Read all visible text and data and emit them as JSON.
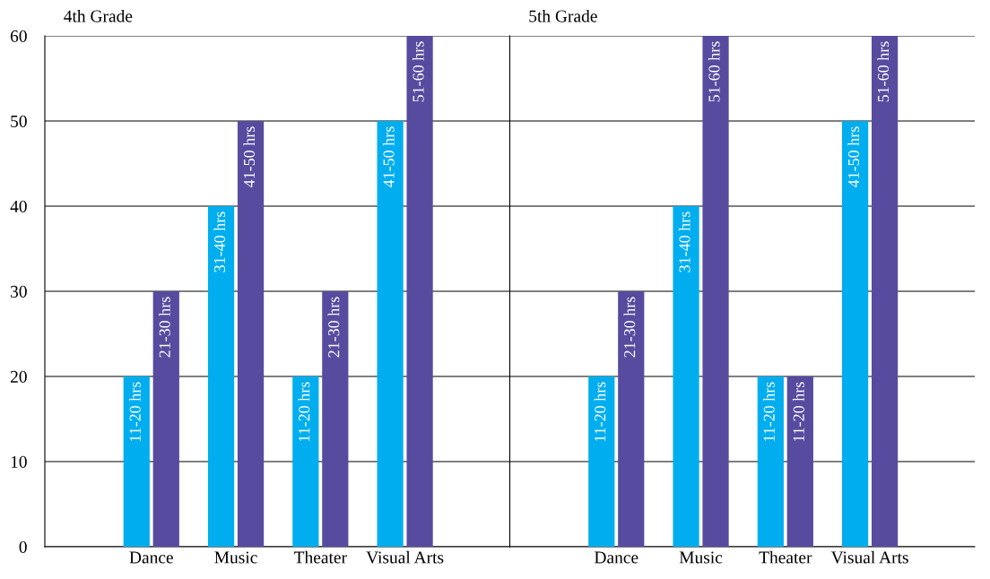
{
  "chart_data": [
    {
      "type": "bar",
      "title": "4th Grade",
      "categories": [
        "Dance",
        "Music",
        "Theater",
        "Visual Arts"
      ],
      "ylim": [
        0,
        60
      ],
      "yticks": [
        0,
        10,
        20,
        30,
        40,
        50,
        60
      ],
      "grid": "y",
      "series": [
        {
          "color": "#00aeef",
          "values": [
            20,
            40,
            20,
            50
          ],
          "value_labels": [
            "11-20 hrs",
            "31-40 hrs",
            "11-20 hrs",
            "41-50 hrs"
          ]
        },
        {
          "color": "#574b9f",
          "values": [
            30,
            50,
            30,
            60
          ],
          "value_labels": [
            "21-30 hrs",
            "41-50 hrs",
            "21-30 hrs",
            "51-60 hrs"
          ]
        }
      ]
    },
    {
      "type": "bar",
      "title": "5th Grade",
      "categories": [
        "Dance",
        "Music",
        "Theater",
        "Visual Arts"
      ],
      "ylim": [
        0,
        60
      ],
      "yticks": [
        0,
        10,
        20,
        30,
        40,
        50,
        60
      ],
      "grid": "y",
      "tick_labels": "x",
      "series": [
        {
          "color": "#00aeef",
          "values": [
            20,
            40,
            20,
            50
          ],
          "value_labels": [
            "11-20 hrs",
            "31-40 hrs",
            "11-20 hrs",
            "41-50 hrs"
          ]
        },
        {
          "color": "#574b9f",
          "values": [
            30,
            60,
            20,
            60
          ],
          "value_labels": [
            "21-30 hrs",
            "51-60 hrs",
            "11-20 hrs",
            "51-60 hrs"
          ]
        }
      ]
    }
  ]
}
